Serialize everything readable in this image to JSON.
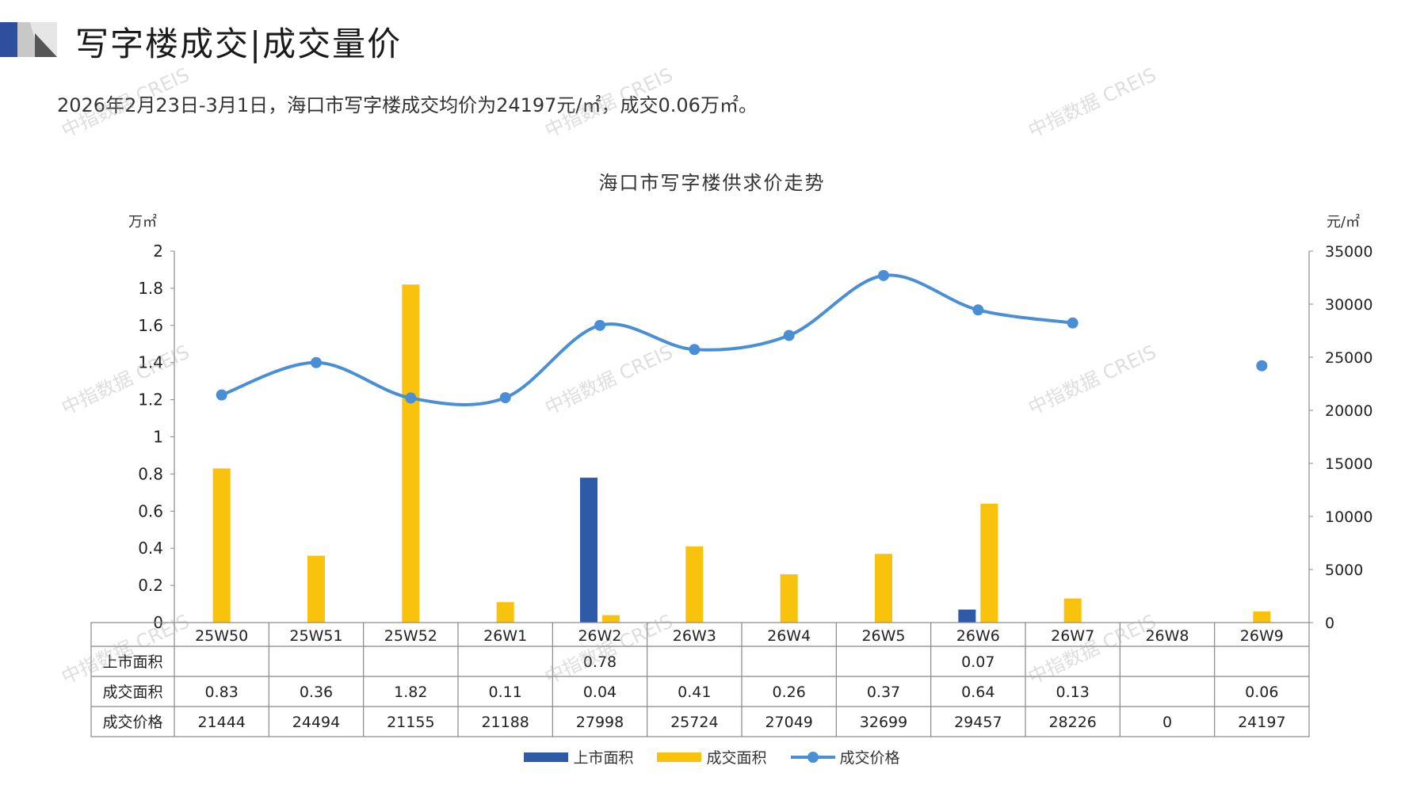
{
  "header": {
    "title": "写字楼成交|成交量价",
    "subtitle": "2026年2月23日-3月1日，海口市写字楼成交均价为24197元/㎡，成交0.06万㎡。"
  },
  "watermark_text": "中指数据 CREIS",
  "colors": {
    "listed": "#2e5aa8",
    "traded": "#f9c20c",
    "price": "#4a8fd6",
    "logo_dark": "#2e4f9e",
    "logo_gray": "#c8c8c8"
  },
  "chart_data": {
    "type": "bar",
    "title": "海口市写字楼供求价走势",
    "left_unit": "万㎡",
    "right_unit": "元/㎡",
    "categories": [
      "25W50",
      "25W51",
      "25W52",
      "26W1",
      "26W2",
      "26W3",
      "26W4",
      "26W5",
      "26W6",
      "26W7",
      "26W8",
      "26W9"
    ],
    "ylim_left": [
      0,
      2
    ],
    "yticks_left": [
      "0",
      "0.2",
      "0.4",
      "0.6",
      "0.8",
      "1",
      "1.2",
      "1.4",
      "1.6",
      "1.8",
      "2"
    ],
    "ylim_right": [
      0,
      35000
    ],
    "yticks_right": [
      "0",
      "5000",
      "10000",
      "15000",
      "20000",
      "25000",
      "30000",
      "35000"
    ],
    "series": [
      {
        "name": "上市面积",
        "kind": "bar",
        "axis": "left",
        "values": [
          null,
          null,
          null,
          null,
          0.78,
          null,
          null,
          null,
          0.07,
          null,
          null,
          null
        ]
      },
      {
        "name": "成交面积",
        "kind": "bar",
        "axis": "left",
        "values": [
          0.83,
          0.36,
          1.82,
          0.11,
          0.04,
          0.41,
          0.26,
          0.37,
          0.64,
          0.13,
          null,
          0.06
        ]
      },
      {
        "name": "成交价格",
        "kind": "line",
        "axis": "right",
        "values": [
          21444,
          24494,
          21155,
          21188,
          27998,
          25724,
          27049,
          32699,
          29457,
          28226,
          0,
          24197
        ]
      }
    ],
    "table": {
      "row_labels": [
        "上市面积",
        "成交面积",
        "成交价格"
      ],
      "rows": [
        [
          "",
          "",
          "",
          "",
          "0.78",
          "",
          "",
          "",
          "0.07",
          "",
          "",
          ""
        ],
        [
          "0.83",
          "0.36",
          "1.82",
          "0.11",
          "0.04",
          "0.41",
          "0.26",
          "0.37",
          "0.64",
          "0.13",
          "",
          "0.06"
        ],
        [
          "21444",
          "24494",
          "21155",
          "21188",
          "27998",
          "25724",
          "27049",
          "32699",
          "29457",
          "28226",
          "0",
          "24197"
        ]
      ]
    },
    "legend": [
      "上市面积",
      "成交面积",
      "成交价格"
    ],
    "grid": false,
    "legend_position": "bottom"
  }
}
